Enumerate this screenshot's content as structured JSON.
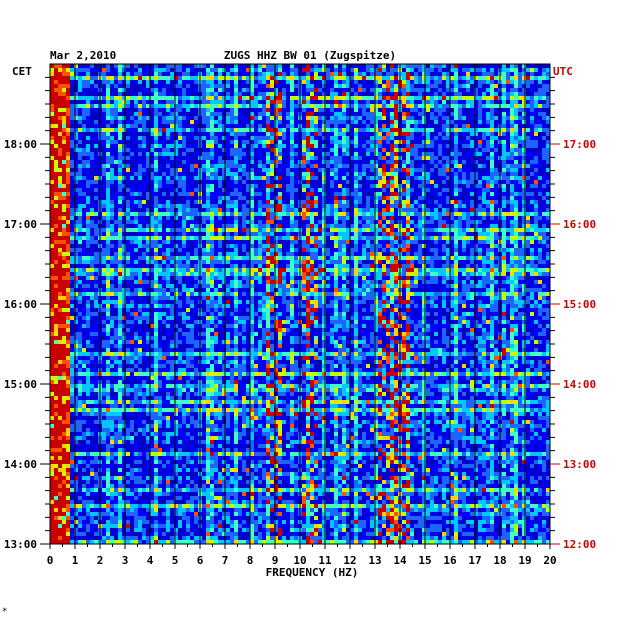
{
  "chart_data": {
    "type": "heatmap",
    "title": "ZUGS HHZ BW 01 (Zugspitze)",
    "date": "Mar 2,2010",
    "left_zone": "CET",
    "right_zone": "UTC",
    "xlabel": "FREQUENCY (HZ)",
    "xlim": [
      0,
      20
    ],
    "x_ticks": [
      "0",
      "1",
      "2",
      "3",
      "4",
      "5",
      "6",
      "7",
      "8",
      "9",
      "10",
      "11",
      "12",
      "13",
      "14",
      "15",
      "16",
      "17",
      "18",
      "19",
      "20"
    ],
    "y_ticks_cet": [
      "18:00",
      "17:00",
      "16:00",
      "15:00",
      "14:00",
      "13:00"
    ],
    "y_ticks_utc": [
      "17:00",
      "16:00",
      "15:00",
      "14:00",
      "13:00",
      "12:00"
    ],
    "time_range_cet": [
      "13:00",
      "18:48"
    ],
    "colormap": [
      "#00008b",
      "#0000cd",
      "#0000ff",
      "#1e64ff",
      "#00c8ff",
      "#40ffc0",
      "#c8ff00",
      "#ffd200",
      "#ff5000",
      "#c80000"
    ],
    "energetic_bands_hz": [
      0.3,
      9.0,
      10.4,
      13.5,
      14.1
    ],
    "grid": true
  },
  "footer_mark": "*"
}
